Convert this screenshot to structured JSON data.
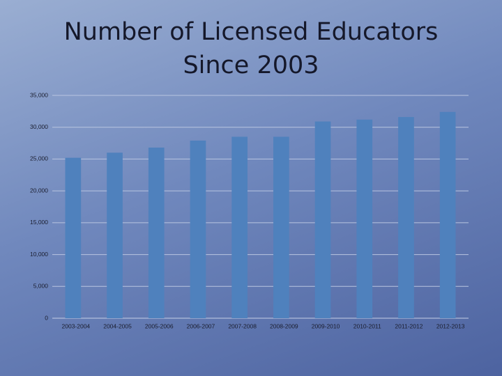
{
  "chart_data": {
    "type": "bar",
    "title": "Number of Licensed Educators Since 2003",
    "categories": [
      "2003-2004",
      "2004-2005",
      "2005-2006",
      "2006-2007",
      "2007-2008",
      "2008-2009",
      "2009-2010",
      "2010-2011",
      "2011-2012",
      "2012-2013"
    ],
    "values": [
      25200,
      26000,
      26800,
      27900,
      28500,
      28500,
      30900,
      31200,
      31600,
      32400
    ],
    "color": "#4f81bd",
    "ylim": [
      0,
      35000
    ],
    "yticks": [
      0,
      {
        "value": 5000,
        "label": "5,000"
      },
      {
        "value": 10000,
        "label": "10,000"
      },
      {
        "value": 15000,
        "label": "15,000"
      },
      {
        "value": 20000,
        "label": "20,000"
      },
      {
        "value": 25000,
        "label": "25,000"
      },
      {
        "value": 30000,
        "label": "30,000"
      },
      {
        "value": 35000,
        "label": "35,000"
      }
    ],
    "grid": true
  }
}
